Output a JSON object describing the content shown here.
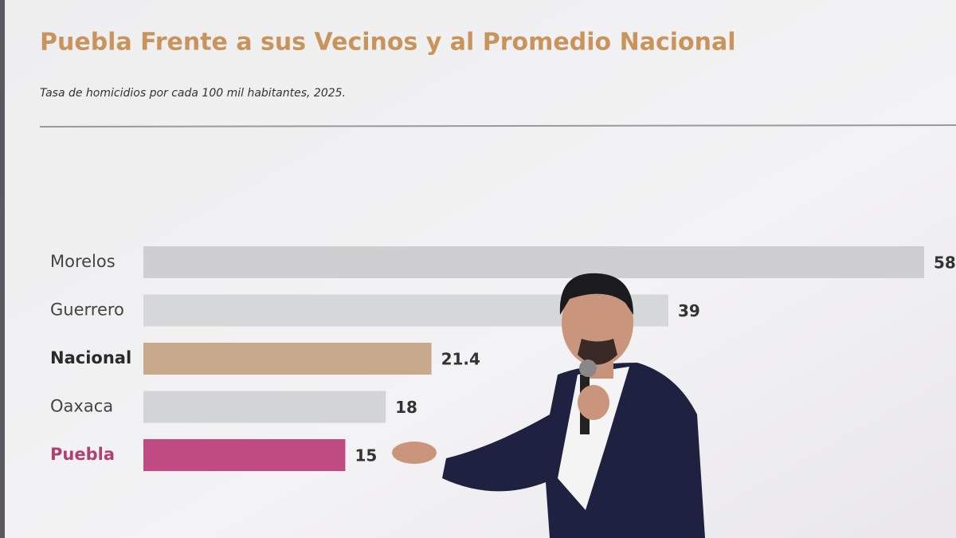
{
  "chart_data": {
    "type": "barh",
    "title": "Puebla Frente a sus Vecinos y al Promedio Nacional",
    "subtitle": "Tasa de homicidios por cada 100 mil habitantes, 2025.",
    "categories": [
      "Morelos",
      "Guerrero",
      "Nacional",
      "Oaxaca",
      "Puebla"
    ],
    "values": [
      58,
      39,
      21.4,
      18,
      15
    ],
    "colors": [
      "#cfcfd1",
      "#d6d7d9",
      "#c9a98b",
      "#d3d4d6",
      "#bf4b82"
    ],
    "label_colors": [
      "#444444",
      "#444444",
      "#2a2a2a",
      "#444444",
      "#b0406f"
    ]
  }
}
